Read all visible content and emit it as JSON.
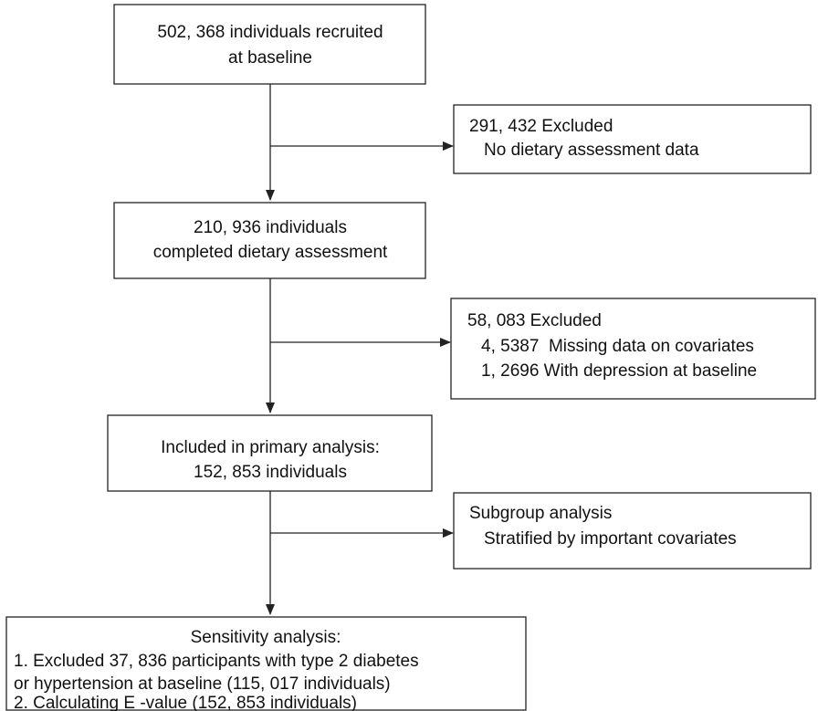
{
  "nodes": [
    {
      "lines": [
        "502, 368 individuals recruited",
        "at baseline"
      ]
    },
    {
      "lines": [
        "291, 432 Excluded",
        "No dietary assessment data"
      ]
    },
    {
      "lines": [
        "210, 936 individuals",
        "completed dietary assessment"
      ]
    },
    {
      "lines": [
        "58, 083 Excluded",
        "4, 5387  Missing data on covariates",
        "1, 2696 With depression at baseline"
      ]
    },
    {
      "lines": [
        "Included in primary analysis:",
        "152, 853 individuals"
      ]
    },
    {
      "lines": [
        "Subgroup analysis",
        "Stratified by important covariates"
      ]
    },
    {
      "lines": [
        "Sensitivity analysis:",
        "1. Excluded 37, 836 participants with type 2 diabetes",
        "or hypertension at baseline (115, 017 individuals)",
        "2. Calculating E -value (152, 853 individuals)"
      ]
    }
  ]
}
